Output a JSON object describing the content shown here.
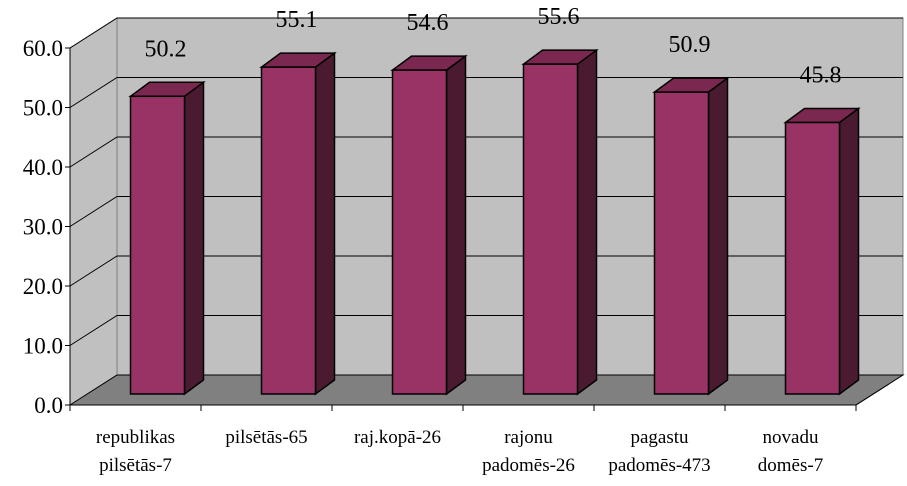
{
  "chart_data": {
    "type": "bar",
    "title": "",
    "xlabel": "",
    "ylabel": "",
    "categories": [
      [
        "republikas",
        "pilsētās-7"
      ],
      [
        "pilsētās-65"
      ],
      [
        "raj.kopā-26"
      ],
      [
        "rajonu",
        "padomēs-26"
      ],
      [
        "pagastu",
        "padomēs-473"
      ],
      [
        "novadu",
        "domēs-7"
      ]
    ],
    "values": [
      50.2,
      55.1,
      54.6,
      55.6,
      50.9,
      45.8
    ],
    "data_labels": [
      "50.2",
      "55.1",
      "54.6",
      "55.6",
      "50.9",
      "45.8"
    ],
    "yticks": [
      "0.0",
      "10.0",
      "20.0",
      "30.0",
      "40.0",
      "50.0",
      "60.0"
    ],
    "ylim": [
      0,
      60
    ],
    "grid": true,
    "legend": "none",
    "three_d": true,
    "colors": {
      "bar_front": "#993366",
      "bar_side": "#4a1a30",
      "bar_top": "#7a284f",
      "back_wall": "#c0c0c0",
      "floor": "#808080"
    }
  }
}
